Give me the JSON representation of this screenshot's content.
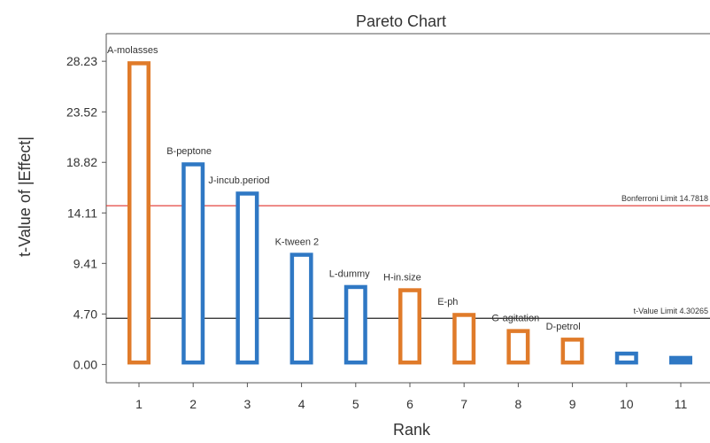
{
  "chart_data": {
    "type": "bar",
    "title": "Pareto Chart",
    "xlabel": "Rank",
    "ylabel": "t-Value of |Effect|",
    "yticks": [
      "0.00",
      "4.70",
      "9.41",
      "14.11",
      "18.82",
      "23.52",
      "28.23"
    ],
    "ylim": [
      -1.7,
      30.8
    ],
    "categories": [
      "1",
      "2",
      "3",
      "4",
      "5",
      "6",
      "7",
      "8",
      "9",
      "10",
      "11"
    ],
    "bars": [
      {
        "rank": 1,
        "label": "A-molasses",
        "value": 28.23,
        "effect": "positive"
      },
      {
        "rank": 2,
        "label": "B-peptone",
        "value": 18.82,
        "effect": "negative"
      },
      {
        "rank": 3,
        "label": "J-incub.period",
        "value": 16.1,
        "effect": "negative"
      },
      {
        "rank": 4,
        "label": "K-tween 2",
        "value": 10.4,
        "effect": "negative"
      },
      {
        "rank": 5,
        "label": "L-dummy",
        "value": 7.4,
        "effect": "negative"
      },
      {
        "rank": 6,
        "label": "H-in.size",
        "value": 7.1,
        "effect": "positive"
      },
      {
        "rank": 7,
        "label": "E-ph",
        "value": 4.8,
        "effect": "positive"
      },
      {
        "rank": 8,
        "label": "G-agitation",
        "value": 3.3,
        "effect": "positive"
      },
      {
        "rank": 9,
        "label": "D-petrol",
        "value": 2.5,
        "effect": "positive"
      },
      {
        "rank": 10,
        "label": "",
        "value": 1.2,
        "effect": "negative"
      },
      {
        "rank": 11,
        "label": "",
        "value": 0.8,
        "effect": "negative"
      }
    ],
    "reference_lines": [
      {
        "label": "Bonferroni Limit 14.7818",
        "value": 14.7818,
        "color": "#e0322b"
      },
      {
        "label": "t-Value Limit 4.30265",
        "value": 4.30265,
        "color": "#222222"
      }
    ],
    "colors": {
      "positive": "#e07b2a",
      "negative": "#2f78c4"
    },
    "grid": false
  }
}
